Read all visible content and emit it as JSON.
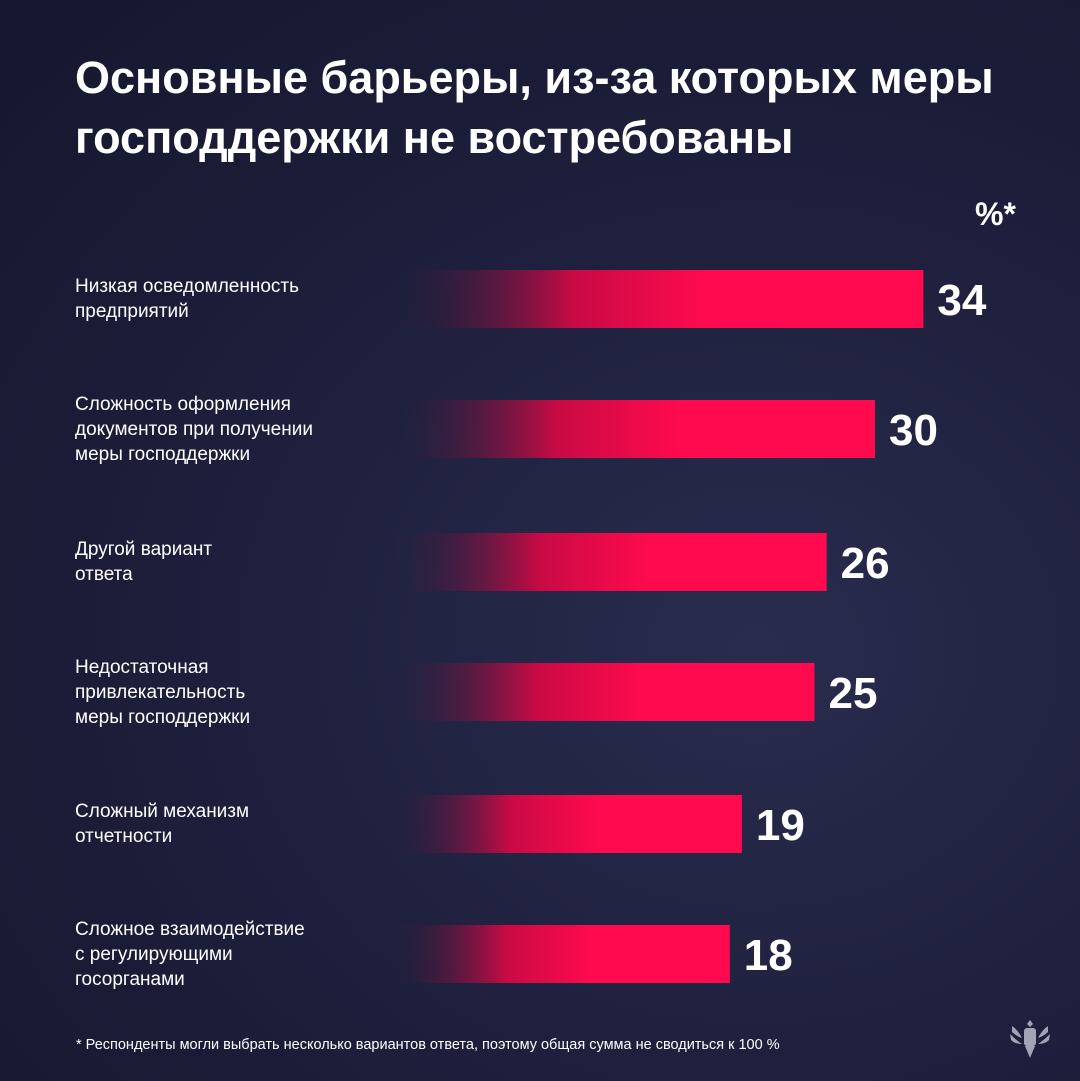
{
  "chart_data": {
    "type": "bar",
    "orientation": "horizontal",
    "title": "Основные барьеры, из-за которых меры господдержки не востребованы",
    "unit_label": "%*",
    "categories": [
      "Низкая осведомленность\nпредприятий",
      "Сложность оформления\nдокументов при получении\nмеры господдержки",
      "Другой вариант\nответа",
      "Недостаточная\nпривлекательность\nмеры господдержки",
      "Сложный механизм\nотчетности",
      "Сложное взаимодействие\nс регулирующими\nгосорганами"
    ],
    "values": [
      34,
      30,
      26,
      25,
      19,
      18
    ],
    "bar_color": "#ff0a4e",
    "bar_fade_color": "#1d1f3c",
    "grid": false,
    "legend": "none"
  },
  "footnote": "*  Респонденты могли выбрать несколько вариантов ответа, поэтому общая сумма не сводиться к 100 %",
  "logo": "double-headed-eagle-emblem"
}
